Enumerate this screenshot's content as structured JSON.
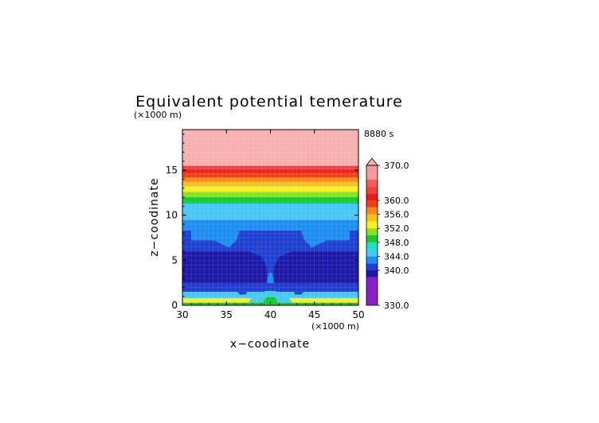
{
  "chart_data": {
    "type": "heatmap",
    "title": "Equivalent potential temerature",
    "time_label": "8880 s",
    "xlabel": "x−coodinate",
    "ylabel": "z−coodinate",
    "x_unit": "(×1000 m)",
    "y_unit": "(×1000 m)",
    "xlim": [
      30,
      50
    ],
    "ylim": [
      0,
      19.5
    ],
    "x_ticks": [
      "30",
      "35",
      "40",
      "45",
      "50"
    ],
    "y_ticks": [
      "0",
      "5",
      "10",
      "15"
    ],
    "colorbar": {
      "min": 330,
      "max": 370,
      "tick_labels": [
        "370.0",
        "360.0",
        "356.0",
        "352.0",
        "348.0",
        "344.0",
        "340.0",
        "330.0"
      ],
      "levels": [
        {
          "from": 330,
          "to": 338,
          "color": "#8a1ec8"
        },
        {
          "from": 338,
          "to": 340,
          "color": "#1c18a8"
        },
        {
          "from": 340,
          "to": 342,
          "color": "#1f3fd2"
        },
        {
          "from": 342,
          "to": 344,
          "color": "#1d8ef0"
        },
        {
          "from": 344,
          "to": 346,
          "color": "#45c8f5"
        },
        {
          "from": 346,
          "to": 348,
          "color": "#1ee0c0"
        },
        {
          "from": 348,
          "to": 350,
          "color": "#18c830"
        },
        {
          "from": 350,
          "to": 352,
          "color": "#8ee020"
        },
        {
          "from": 352,
          "to": 354,
          "color": "#f5f022"
        },
        {
          "from": 354,
          "to": 356,
          "color": "#f5c020"
        },
        {
          "from": 356,
          "to": 358,
          "color": "#f58a18"
        },
        {
          "from": 358,
          "to": 360,
          "color": "#f04018"
        },
        {
          "from": 360,
          "to": 362,
          "color": "#e81e1e"
        },
        {
          "from": 362,
          "to": 364,
          "color": "#f04040"
        },
        {
          "from": 364,
          "to": 366,
          "color": "#f25c5c"
        },
        {
          "from": 366,
          "to": 370,
          "color": "#f49a9a"
        },
        {
          "from": 370,
          "to": 372,
          "color": "#f7b0b0"
        }
      ]
    },
    "horizontal_bands": [
      {
        "z0": 0.0,
        "z1": 0.3,
        "value": 349
      },
      {
        "z0": 0.3,
        "z1": 0.8,
        "value": 352
      },
      {
        "z0": 0.8,
        "z1": 1.5,
        "value": 344
      },
      {
        "z0": 1.5,
        "z1": 2.4,
        "value": 341
      },
      {
        "z0": 2.4,
        "z1": 6.0,
        "value": 339
      },
      {
        "z0": 6.0,
        "z1": 8.3,
        "value": 341
      },
      {
        "z0": 8.3,
        "z1": 9.5,
        "value": 343
      },
      {
        "z0": 9.5,
        "z1": 11.3,
        "value": 345
      },
      {
        "z0": 11.3,
        "z1": 12.0,
        "value": 349
      },
      {
        "z0": 12.0,
        "z1": 12.6,
        "value": 351
      },
      {
        "z0": 12.6,
        "z1": 13.2,
        "value": 353
      },
      {
        "z0": 13.2,
        "z1": 13.7,
        "value": 355
      },
      {
        "z0": 13.7,
        "z1": 14.2,
        "value": 357
      },
      {
        "z0": 14.2,
        "z1": 14.7,
        "value": 359
      },
      {
        "z0": 14.7,
        "z1": 15.1,
        "value": 361
      },
      {
        "z0": 15.1,
        "z1": 15.5,
        "value": 363
      },
      {
        "z0": 15.5,
        "z1": 19.5,
        "value": 371
      }
    ],
    "features": [
      {
        "name": "left-plume",
        "value": 343,
        "points": [
          [
            31,
            7.2
          ],
          [
            33.6,
            7.2
          ],
          [
            35.3,
            6.4
          ],
          [
            36.2,
            7.3
          ],
          [
            36.5,
            8.3
          ],
          [
            35.8,
            8.8
          ],
          [
            33.7,
            9.0
          ],
          [
            31,
            8.3
          ]
        ]
      },
      {
        "name": "right-plume",
        "value": 343,
        "points": [
          [
            49,
            7.2
          ],
          [
            46.4,
            7.2
          ],
          [
            44.7,
            6.4
          ],
          [
            43.8,
            7.3
          ],
          [
            43.5,
            8.3
          ],
          [
            44.2,
            8.8
          ],
          [
            46.3,
            9.0
          ],
          [
            49,
            8.3
          ]
        ]
      },
      {
        "name": "central-column-bg",
        "value": 341,
        "points": [
          [
            36.5,
            6.4
          ],
          [
            39.0,
            5.4
          ],
          [
            39.6,
            4.2
          ],
          [
            39.6,
            1.5
          ],
          [
            40.4,
            1.5
          ],
          [
            40.4,
            4.2
          ],
          [
            41.0,
            5.4
          ],
          [
            43.5,
            6.4
          ]
        ]
      },
      {
        "name": "central-column",
        "value": 343,
        "points": [
          [
            39.6,
            2.5
          ],
          [
            39.8,
            3.6
          ],
          [
            40.2,
            3.6
          ],
          [
            40.4,
            2.5
          ]
        ]
      },
      {
        "name": "central-base",
        "value": 345,
        "points": [
          [
            37.5,
            0.3
          ],
          [
            38.2,
            1.2
          ],
          [
            39.5,
            1.6
          ],
          [
            40.5,
            1.6
          ],
          [
            41.8,
            1.2
          ],
          [
            42.5,
            0.3
          ]
        ]
      },
      {
        "name": "central-core",
        "value": 348,
        "points": [
          [
            39.0,
            0.0
          ],
          [
            39.5,
            0.9
          ],
          [
            40.5,
            0.9
          ],
          [
            41.0,
            0.0
          ]
        ]
      },
      {
        "name": "dip-left",
        "value": 341,
        "points": [
          [
            33.0,
            2.4
          ],
          [
            35.4,
            2.4
          ],
          [
            36.5,
            1.2
          ],
          [
            37.2,
            1.2
          ],
          [
            37.7,
            2.4
          ],
          [
            38.4,
            2.4
          ]
        ]
      },
      {
        "name": "dip-right",
        "value": 341,
        "points": [
          [
            47.0,
            2.4
          ],
          [
            44.6,
            2.4
          ],
          [
            43.5,
            1.2
          ],
          [
            42.8,
            1.2
          ],
          [
            42.3,
            2.4
          ],
          [
            41.6,
            2.4
          ]
        ]
      }
    ]
  }
}
